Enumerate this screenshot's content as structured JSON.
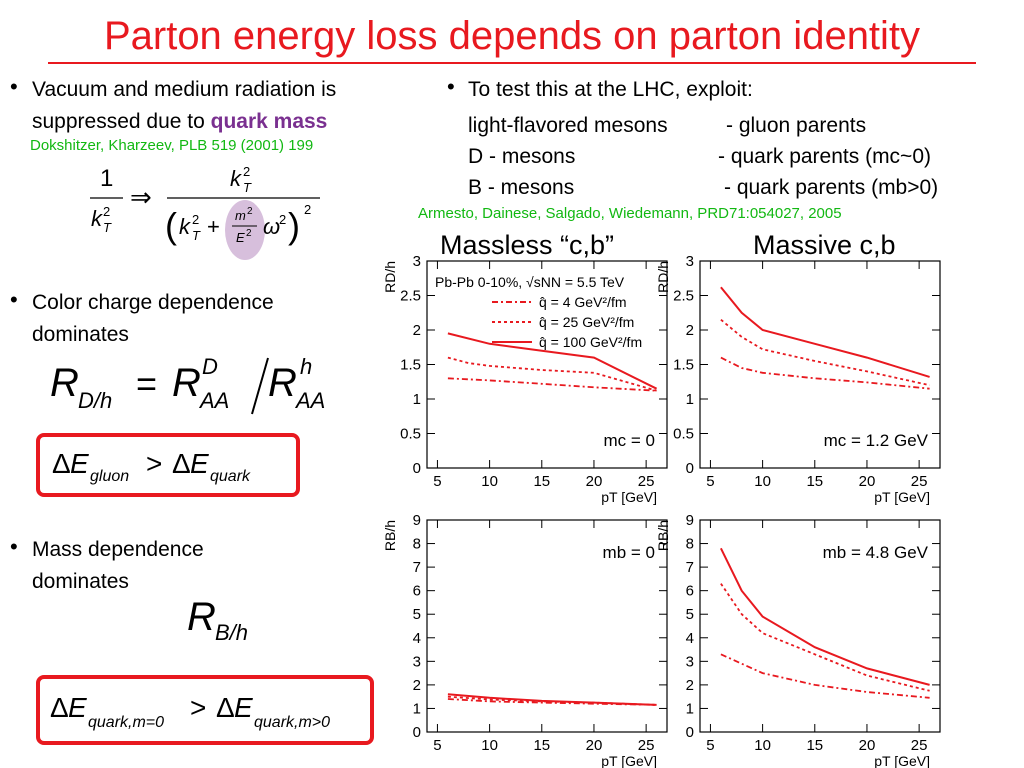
{
  "title": "Parton energy loss depends on parton identity",
  "left": {
    "bullet1": {
      "line1": "Vacuum and medium radiation is",
      "line2_prefix": "suppressed due to ",
      "line2_highlight": "quark mass"
    },
    "citation1": "Dokshitzer, Kharzeev, PLB 519 (2001) 199",
    "bullet2": {
      "line1": "Color charge dependence",
      "line2": "dominates"
    },
    "formula_rdh": "R_D/h = R_AA^D / R_AA^h",
    "formula_gluon": "ΔE_gluon > ΔE_quark",
    "bullet3": {
      "line1": "Mass dependence",
      "line2": "dominates"
    },
    "formula_rbh": "R_B/h",
    "formula_mass": "ΔE_quark,m=0 > ΔE_quark,m>0"
  },
  "right": {
    "intro": "To test this at the LHC, exploit:",
    "rows": [
      {
        "left": "light-flavored mesons",
        "right": "- gluon parents"
      },
      {
        "left": "D - mesons",
        "right": "- quark parents (mc~0)"
      },
      {
        "left": "B - mesons",
        "right": "- quark parents (mb>0)"
      }
    ],
    "citation2": "Armesto, Dainese, Salgado, Wiedemann, PRD71:054027, 2005",
    "massless_title": "Massless “c,b”",
    "massive_title": "Massive c,b"
  },
  "colors": {
    "title": "#e8191f",
    "citation": "#12b812",
    "highlight": "#7a3090",
    "curve": "#e8191f"
  },
  "chart_data": [
    {
      "type": "line",
      "id": "D-massless",
      "xlabel": "pT [GeV]",
      "ylabel": "RD/h",
      "xlim": [
        4,
        27
      ],
      "ylim": [
        0,
        3
      ],
      "xticks": [
        "5",
        "10",
        "15",
        "20",
        "25"
      ],
      "yticks": [
        "0",
        "0.5",
        "1",
        "1.5",
        "2",
        "2.5",
        "3"
      ],
      "legend_header": "Pb-Pb 0-10%, √sNN = 5.5 TeV",
      "annotation": "mc = 0",
      "series": [
        {
          "name": "q̂ = 4 GeV²/fm",
          "style": "dashdot",
          "x": [
            6,
            10,
            15,
            20,
            26
          ],
          "y": [
            1.3,
            1.27,
            1.22,
            1.17,
            1.12
          ]
        },
        {
          "name": "q̂ = 25 GeV²/fm",
          "style": "dotted",
          "x": [
            6,
            8,
            10,
            15,
            20,
            26
          ],
          "y": [
            1.6,
            1.52,
            1.48,
            1.42,
            1.38,
            1.12
          ]
        },
        {
          "name": "q̂ = 100 GeV²/fm",
          "style": "solid",
          "x": [
            6,
            10,
            15,
            20,
            26
          ],
          "y": [
            1.95,
            1.8,
            1.7,
            1.6,
            1.15
          ]
        }
      ]
    },
    {
      "type": "line",
      "id": "D-massive",
      "xlabel": "pT [GeV]",
      "ylabel": "RD/h",
      "xlim": [
        4,
        27
      ],
      "ylim": [
        0,
        3
      ],
      "xticks": [
        "5",
        "10",
        "15",
        "20",
        "25"
      ],
      "yticks": [
        "0",
        "0.5",
        "1",
        "1.5",
        "2",
        "2.5",
        "3"
      ],
      "annotation": "mc = 1.2 GeV",
      "series": [
        {
          "style": "dashdot",
          "x": [
            6,
            8,
            10,
            15,
            20,
            26
          ],
          "y": [
            1.6,
            1.45,
            1.38,
            1.3,
            1.24,
            1.15
          ]
        },
        {
          "style": "dotted",
          "x": [
            6,
            8,
            10,
            15,
            20,
            26
          ],
          "y": [
            2.15,
            1.9,
            1.72,
            1.55,
            1.4,
            1.2
          ]
        },
        {
          "style": "solid",
          "x": [
            6,
            8,
            10,
            15,
            20,
            26
          ],
          "y": [
            2.62,
            2.25,
            2.0,
            1.8,
            1.6,
            1.32
          ]
        }
      ]
    },
    {
      "type": "line",
      "id": "B-massless",
      "xlabel": "pT [GeV]",
      "ylabel": "RB/h",
      "xlim": [
        4,
        27
      ],
      "ylim": [
        0,
        9
      ],
      "xticks": [
        "5",
        "10",
        "15",
        "20",
        "25"
      ],
      "yticks": [
        "0",
        "1",
        "2",
        "3",
        "4",
        "5",
        "6",
        "7",
        "8",
        "9"
      ],
      "annotation": "mb = 0",
      "series": [
        {
          "style": "dashdot",
          "x": [
            6,
            10,
            15,
            20,
            26
          ],
          "y": [
            1.4,
            1.3,
            1.25,
            1.2,
            1.15
          ]
        },
        {
          "style": "dotted",
          "x": [
            6,
            10,
            15,
            20,
            26
          ],
          "y": [
            1.5,
            1.38,
            1.3,
            1.25,
            1.15
          ]
        },
        {
          "style": "solid",
          "x": [
            6,
            10,
            15,
            20,
            26
          ],
          "y": [
            1.6,
            1.45,
            1.32,
            1.25,
            1.15
          ]
        }
      ]
    },
    {
      "type": "line",
      "id": "B-massive",
      "xlabel": "pT [GeV]",
      "ylabel": "RB/h",
      "xlim": [
        4,
        27
      ],
      "ylim": [
        0,
        9
      ],
      "xticks": [
        "5",
        "10",
        "15",
        "20",
        "25"
      ],
      "yticks": [
        "0",
        "1",
        "2",
        "3",
        "4",
        "5",
        "6",
        "7",
        "8",
        "9"
      ],
      "annotation": "mb = 4.8 GeV",
      "series": [
        {
          "style": "dashdot",
          "x": [
            6,
            8,
            10,
            15,
            20,
            26
          ],
          "y": [
            3.3,
            2.9,
            2.5,
            2.0,
            1.7,
            1.45
          ]
        },
        {
          "style": "dotted",
          "x": [
            6,
            8,
            10,
            15,
            20,
            26
          ],
          "y": [
            6.3,
            5.0,
            4.2,
            3.3,
            2.4,
            1.75
          ]
        },
        {
          "style": "solid",
          "x": [
            6,
            8,
            10,
            15,
            20,
            26
          ],
          "y": [
            7.8,
            6.0,
            4.9,
            3.6,
            2.7,
            2.0
          ]
        }
      ]
    }
  ]
}
